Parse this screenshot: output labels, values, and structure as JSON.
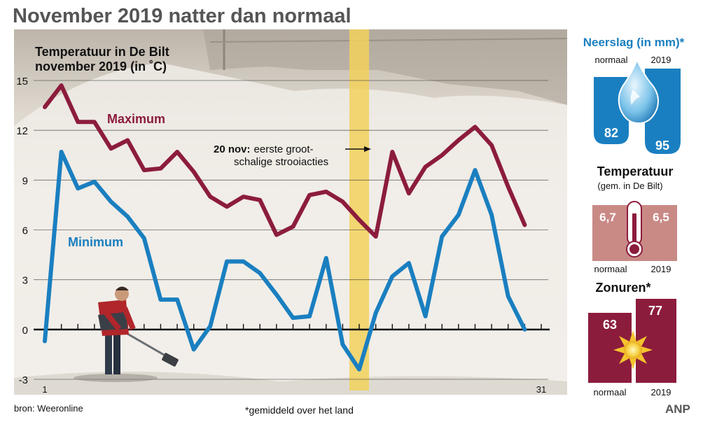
{
  "headline": "November 2019 natter dan normaal",
  "source": "bron: Weeronline",
  "footnote": "*gemiddeld over het land",
  "agency": "ANP",
  "chart_data": {
    "type": "line",
    "title_lines": [
      "Temperatuur in De Bilt",
      "november 2019 (in ˚C)"
    ],
    "ylim": [
      -3,
      15
    ],
    "y_ticks": [
      -3,
      0,
      3,
      6,
      9,
      12,
      15
    ],
    "x_range": [
      1,
      31
    ],
    "x_tick_labels": [
      {
        "x": 1,
        "label": "1"
      },
      {
        "x": 31,
        "label": "31"
      }
    ],
    "grid": true,
    "series": [
      {
        "name": "Maximum",
        "color": "#8c1c3c",
        "x": [
          1,
          2,
          3,
          4,
          5,
          6,
          7,
          8,
          9,
          10,
          11,
          12,
          13,
          14,
          15,
          16,
          17,
          18,
          19,
          20,
          21,
          22,
          23,
          24,
          25,
          26,
          27,
          28,
          29,
          30,
          31
        ],
        "values": [
          13.4,
          14.7,
          12.5,
          12.5,
          10.9,
          11.4,
          9.6,
          9.7,
          10.7,
          9.5,
          8.0,
          7.4,
          8.0,
          7.8,
          5.7,
          6.2,
          8.1,
          8.3,
          7.7,
          6.6,
          5.6,
          10.7,
          8.2,
          9.8,
          10.5,
          11.4,
          12.2,
          11.1,
          8.6,
          6.3,
          null
        ]
      },
      {
        "name": "Minimum",
        "color": "#1a7fc0",
        "x": [
          1,
          2,
          3,
          4,
          5,
          6,
          7,
          8,
          9,
          10,
          11,
          12,
          13,
          14,
          15,
          16,
          17,
          18,
          19,
          20,
          21,
          22,
          23,
          24,
          25,
          26,
          27,
          28,
          29,
          30,
          31
        ],
        "values": [
          -0.7,
          10.7,
          8.5,
          8.9,
          7.7,
          6.8,
          5.5,
          1.8,
          1.8,
          -1.2,
          0.2,
          4.1,
          4.1,
          3.4,
          2.1,
          0.7,
          0.8,
          4.3,
          -0.9,
          -2.4,
          1.0,
          3.2,
          4.0,
          0.8,
          5.6,
          6.9,
          9.6,
          6.9,
          2.0,
          0.0,
          null
        ]
      }
    ],
    "annotation": {
      "x": 20,
      "bold": "20 nov:",
      "line1": "eerste groot-",
      "line2": "schalige strooiacties"
    }
  },
  "side": {
    "rain": {
      "title": "Neerslag (in mm)*",
      "normaal_label": "normaal",
      "year_label": "2019",
      "normaal_value": 82,
      "year_value": 95
    },
    "temp": {
      "title": "Temperatuur",
      "subtitle": "(gem. in De Bilt)",
      "normaal_label": "normaal",
      "year_label": "2019",
      "normaal_value": "6,7",
      "year_value": "6,5"
    },
    "sun": {
      "title": "Zonuren*",
      "normaal_label": "normaal",
      "year_label": "2019",
      "normaal_value": 63,
      "year_value": 77
    }
  },
  "colors": {
    "max": "#8c1c3c",
    "min": "#1a7fc0",
    "highlight": "#f2d15c",
    "rain_bar": "#1a7fc0",
    "temp_box": "#c98a86",
    "sun_bar": "#8c1c3c"
  }
}
